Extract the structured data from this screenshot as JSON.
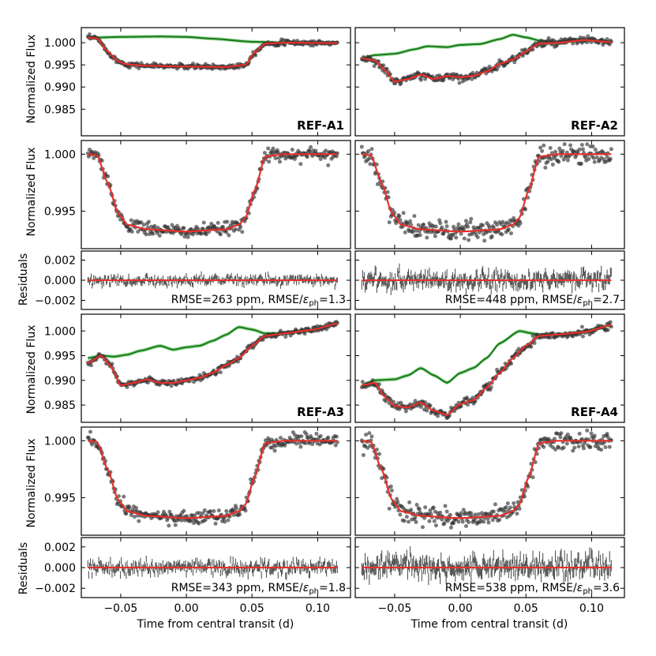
{
  "figure": {
    "xlabel": "Time from central transit (d)",
    "ylabel_flux": "Normalized Flux",
    "ylabel_resid": "Residuals",
    "xlim": [
      -0.08,
      0.125
    ],
    "xticks": [
      -0.05,
      0.0,
      0.05,
      0.1
    ],
    "xtick_labels": [
      "−0.05",
      "0.00",
      "0.05",
      "0.10"
    ],
    "colors": {
      "data": "#333333",
      "model": "#e8302a",
      "systematics": "#1a7f1a",
      "systematics_band": "#8fd18f"
    }
  },
  "chart_data": [
    {
      "type": "scatter",
      "id": "A1-raw",
      "label": "REF-A1",
      "ylim": [
        0.979,
        1.0034
      ],
      "yticks": [
        1.0,
        0.995,
        0.99,
        0.985
      ],
      "ytick_labels": [
        "1.000",
        "0.995",
        "0.990",
        "0.985"
      ],
      "series": [
        {
          "name": "systematics",
          "x": [
            -0.075,
            -0.05,
            -0.02,
            0.0,
            0.02,
            0.05,
            0.075,
            0.115
          ],
          "y": [
            1.0011,
            1.0013,
            1.0014,
            1.0013,
            1.0009,
            1.0002,
            1.0,
            0.9999
          ]
        },
        {
          "name": "transit-model",
          "x": [
            -0.075,
            -0.068,
            -0.06,
            -0.052,
            -0.045,
            -0.03,
            0.0,
            0.03,
            0.045,
            0.052,
            0.06,
            0.075,
            0.115
          ],
          "y": [
            1.0011,
            1.001,
            0.998,
            0.9958,
            0.9951,
            0.9948,
            0.9946,
            0.9945,
            0.995,
            0.9978,
            0.9998,
            1.0,
            0.9999
          ]
        }
      ]
    },
    {
      "type": "scatter",
      "id": "A2-raw",
      "label": "REF-A2",
      "ylim": [
        0.979,
        1.0034
      ],
      "yticks": [
        1.0,
        0.995,
        0.99,
        0.985
      ],
      "ytick_labels": [
        "1.000",
        "0.995",
        "0.990",
        "0.985"
      ],
      "series": [
        {
          "name": "systematics",
          "x": [
            -0.075,
            -0.065,
            -0.05,
            -0.035,
            -0.025,
            -0.01,
            0.0,
            0.015,
            0.03,
            0.04,
            0.05,
            0.06,
            0.075,
            0.095,
            0.115
          ],
          "y": [
            0.9965,
            0.9972,
            0.9975,
            0.9985,
            0.9992,
            0.999,
            0.9995,
            0.9997,
            1.0008,
            1.0018,
            1.0012,
            1.0005,
            1.0,
            1.0006,
            1.0001
          ]
        },
        {
          "name": "transit-model",
          "x": [
            -0.075,
            -0.065,
            -0.058,
            -0.05,
            -0.04,
            -0.03,
            -0.02,
            -0.01,
            0.0,
            0.01,
            0.02,
            0.03,
            0.04,
            0.05,
            0.06,
            0.075,
            0.095,
            0.115
          ],
          "y": [
            0.9965,
            0.996,
            0.994,
            0.9912,
            0.9918,
            0.9928,
            0.9918,
            0.9925,
            0.9922,
            0.9925,
            0.9935,
            0.9952,
            0.9962,
            0.998,
            0.9998,
            1.0,
            1.0006,
            1.0001
          ]
        }
      ]
    },
    {
      "type": "scatter",
      "id": "A1-detrended",
      "ylim": [
        0.9917,
        1.0012
      ],
      "yticks": [
        1.0,
        0.995
      ],
      "ytick_labels": [
        "1.000",
        "0.995"
      ],
      "series": [
        {
          "name": "transit-model",
          "x": [
            -0.075,
            -0.068,
            -0.06,
            -0.052,
            -0.045,
            -0.03,
            0.0,
            0.03,
            0.04,
            0.045,
            0.052,
            0.06,
            0.075,
            0.115
          ],
          "y": [
            1.0,
            0.9999,
            0.9975,
            0.9948,
            0.9938,
            0.9934,
            0.9932,
            0.9934,
            0.9938,
            0.9944,
            0.9968,
            0.9998,
            1.0,
            1.0
          ]
        }
      ]
    },
    {
      "type": "scatter",
      "id": "A2-detrended",
      "ylim": [
        0.9917,
        1.0012
      ],
      "yticks": [
        1.0,
        0.995
      ],
      "ytick_labels": [
        "1.000",
        "0.995"
      ],
      "series": [
        {
          "name": "transit-model",
          "x": [
            -0.075,
            -0.068,
            -0.06,
            -0.052,
            -0.045,
            -0.03,
            0.0,
            0.03,
            0.04,
            0.045,
            0.052,
            0.06,
            0.075,
            0.115
          ],
          "y": [
            1.0,
            0.9999,
            0.9975,
            0.9948,
            0.9938,
            0.9934,
            0.9932,
            0.9934,
            0.9938,
            0.9944,
            0.9968,
            0.9998,
            1.0,
            1.0
          ]
        }
      ]
    },
    {
      "type": "scatter",
      "id": "A1-residuals",
      "annotation_prefix": "RMSE=263 ppm, RMSE/",
      "annotation_eps": "ε",
      "annotation_sub": "ph",
      "annotation_suffix": "=1.3",
      "ylim": [
        -0.0029,
        0.0029
      ],
      "yticks": [
        0.002,
        0.0,
        -0.002
      ],
      "ytick_labels": [
        "0.002",
        "0.000",
        "−0.002"
      ],
      "noise_amplitude": 0.00026
    },
    {
      "type": "scatter",
      "id": "A2-residuals",
      "annotation_prefix": "RMSE=448 ppm, RMSE/",
      "annotation_eps": "ε",
      "annotation_sub": "ph",
      "annotation_suffix": "=2.7",
      "ylim": [
        -0.0029,
        0.0029
      ],
      "yticks": [
        0.002,
        0.0,
        -0.002
      ],
      "ytick_labels": [
        "0.002",
        "0.000",
        "−0.002"
      ],
      "noise_amplitude": 0.00045
    },
    {
      "type": "scatter",
      "id": "A3-raw",
      "label": "REF-A3",
      "ylim": [
        0.9815,
        1.0034
      ],
      "yticks": [
        1.0,
        0.995,
        0.99,
        0.985
      ],
      "ytick_labels": [
        "1.000",
        "0.995",
        "0.990",
        "0.985"
      ],
      "series": [
        {
          "name": "systematics",
          "x": [
            -0.075,
            -0.065,
            -0.055,
            -0.045,
            -0.035,
            -0.02,
            -0.01,
            0.0,
            0.01,
            0.02,
            0.03,
            0.04,
            0.05,
            0.06,
            0.075,
            0.095,
            0.115
          ],
          "y": [
            0.9945,
            0.995,
            0.9948,
            0.9952,
            0.996,
            0.997,
            0.9962,
            0.9967,
            0.997,
            0.998,
            0.9992,
            1.0008,
            1.0003,
            0.9995,
            0.9995,
            1.0002,
            1.0015
          ]
        },
        {
          "name": "transit-model",
          "x": [
            -0.075,
            -0.065,
            -0.058,
            -0.05,
            -0.04,
            -0.03,
            -0.02,
            -0.01,
            0.0,
            0.01,
            0.02,
            0.03,
            0.04,
            0.05,
            0.06,
            0.075,
            0.095,
            0.115
          ],
          "y": [
            0.9935,
            0.995,
            0.993,
            0.989,
            0.9895,
            0.9902,
            0.9895,
            0.9895,
            0.99,
            0.9905,
            0.9915,
            0.993,
            0.9945,
            0.997,
            0.999,
            0.9995,
            1.0002,
            1.0015
          ]
        }
      ]
    },
    {
      "type": "scatter",
      "id": "A4-raw",
      "label": "REF-A4",
      "ylim": [
        0.9815,
        1.0034
      ],
      "yticks": [
        1.0,
        0.995,
        0.99,
        0.985
      ],
      "ytick_labels": [
        "1.000",
        "0.995",
        "0.990",
        "0.985"
      ],
      "series": [
        {
          "name": "systematics",
          "x": [
            -0.075,
            -0.065,
            -0.05,
            -0.04,
            -0.03,
            -0.02,
            -0.01,
            0.0,
            0.01,
            0.02,
            0.03,
            0.045,
            0.055,
            0.06,
            0.075,
            0.095,
            0.115
          ],
          "y": [
            0.989,
            0.99,
            0.9902,
            0.991,
            0.9925,
            0.991,
            0.9895,
            0.9915,
            0.9925,
            0.9945,
            0.9975,
            1.0,
            0.9995,
            0.9992,
            0.9993,
            0.9998,
            1.0012
          ]
        },
        {
          "name": "transit-model",
          "x": [
            -0.075,
            -0.065,
            -0.058,
            -0.05,
            -0.04,
            -0.03,
            -0.02,
            -0.01,
            0.0,
            0.01,
            0.02,
            0.03,
            0.04,
            0.05,
            0.06,
            0.075,
            0.095,
            0.115
          ],
          "y": [
            0.989,
            0.9895,
            0.9868,
            0.9848,
            0.9845,
            0.9855,
            0.9838,
            0.983,
            0.9852,
            0.986,
            0.9885,
            0.9915,
            0.9945,
            0.997,
            0.999,
            0.9993,
            0.9998,
            1.0012
          ]
        }
      ]
    },
    {
      "type": "scatter",
      "id": "A3-detrended",
      "ylim": [
        0.9917,
        1.0012
      ],
      "yticks": [
        1.0,
        0.995
      ],
      "ytick_labels": [
        "1.000",
        "0.995"
      ],
      "series": [
        {
          "name": "transit-model",
          "x": [
            -0.075,
            -0.068,
            -0.06,
            -0.052,
            -0.045,
            -0.03,
            0.0,
            0.03,
            0.04,
            0.045,
            0.052,
            0.06,
            0.075,
            0.115
          ],
          "y": [
            1.0,
            0.9999,
            0.9975,
            0.9948,
            0.9938,
            0.9934,
            0.9932,
            0.9934,
            0.9938,
            0.9944,
            0.9968,
            0.9998,
            1.0,
            1.0
          ]
        }
      ]
    },
    {
      "type": "scatter",
      "id": "A4-detrended",
      "ylim": [
        0.9917,
        1.0012
      ],
      "yticks": [
        1.0,
        0.995
      ],
      "ytick_labels": [
        "1.000",
        "0.995"
      ],
      "series": [
        {
          "name": "transit-model",
          "x": [
            -0.075,
            -0.068,
            -0.06,
            -0.052,
            -0.045,
            -0.03,
            0.0,
            0.03,
            0.04,
            0.045,
            0.052,
            0.06,
            0.075,
            0.115
          ],
          "y": [
            1.0,
            0.9999,
            0.9975,
            0.9948,
            0.9938,
            0.9934,
            0.9932,
            0.9934,
            0.9938,
            0.9944,
            0.9968,
            0.9998,
            1.0,
            1.0
          ]
        }
      ]
    },
    {
      "type": "scatter",
      "id": "A3-residuals",
      "annotation_prefix": "RMSE=343 ppm, RMSE/",
      "annotation_eps": "ε",
      "annotation_sub": "ph",
      "annotation_suffix": "=1.8",
      "ylim": [
        -0.0029,
        0.0029
      ],
      "yticks": [
        0.002,
        0.0,
        -0.002
      ],
      "ytick_labels": [
        "0.002",
        "0.000",
        "−0.002"
      ],
      "noise_amplitude": 0.00034
    },
    {
      "type": "scatter",
      "id": "A4-residuals",
      "annotation_prefix": "RMSE=538 ppm, RMSE/",
      "annotation_eps": "ε",
      "annotation_sub": "ph",
      "annotation_suffix": "=3.6",
      "ylim": [
        -0.0029,
        0.0029
      ],
      "yticks": [
        0.002,
        0.0,
        -0.002
      ],
      "ytick_labels": [
        "0.002",
        "0.000",
        "−0.002"
      ],
      "noise_amplitude": 0.00054
    }
  ]
}
